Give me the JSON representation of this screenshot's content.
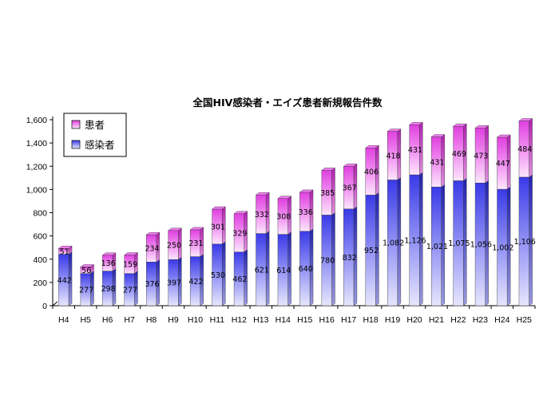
{
  "chart_data": {
    "type": "bar",
    "stacked": true,
    "title": "全国HIV感染者・エイズ患者新規報告件数",
    "xlabel": "",
    "ylabel": "",
    "ylim": [
      0,
      1600
    ],
    "yticks": [
      0,
      200,
      400,
      600,
      800,
      1000,
      1200,
      1400,
      1600
    ],
    "ytick_labels": [
      "0",
      "200",
      "400",
      "600",
      "800",
      "1,000",
      "1,200",
      "1,400",
      "1,600"
    ],
    "categories": [
      "H4",
      "H5",
      "H6",
      "H7",
      "H8",
      "H9",
      "H10",
      "H11",
      "H12",
      "H13",
      "H14",
      "H15",
      "H16",
      "H17",
      "H18",
      "H19",
      "H20",
      "H21",
      "H22",
      "H23",
      "H24",
      "H25"
    ],
    "series": [
      {
        "name": "感染者",
        "values": [
          442,
          277,
          298,
          277,
          376,
          397,
          422,
          530,
          462,
          621,
          614,
          640,
          780,
          832,
          952,
          1082,
          1126,
          1021,
          1075,
          1056,
          1002,
          1106
        ],
        "labels": [
          "442",
          "277",
          "298",
          "277",
          "376",
          "397",
          "422",
          "530",
          "462",
          "621",
          "614",
          "640",
          "780",
          "832",
          "952",
          "1,082",
          "1,126",
          "1,021",
          "1,075",
          "1,056",
          "1,002",
          "1,106"
        ],
        "color": "#5b5bf0"
      },
      {
        "name": "患者",
        "values": [
          51,
          56,
          136,
          159,
          234,
          250,
          231,
          301,
          329,
          332,
          308,
          336,
          385,
          367,
          406,
          418,
          431,
          431,
          469,
          473,
          447,
          484
        ],
        "labels": [
          "51",
          "56",
          "136",
          "159",
          "234",
          "250",
          "231",
          "301",
          "329",
          "332",
          "308",
          "336",
          "385",
          "367",
          "406",
          "418",
          "431",
          "431",
          "469",
          "473",
          "447",
          "484"
        ],
        "color": "#f06cf0"
      }
    ],
    "legend": {
      "position": "top-left",
      "order": [
        "患者",
        "感染者"
      ]
    },
    "grid": false
  }
}
